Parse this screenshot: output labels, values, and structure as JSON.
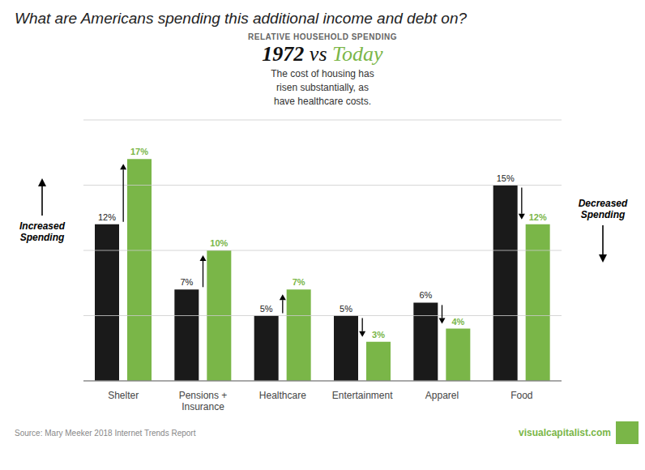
{
  "chart_data": {
    "type": "bar",
    "title": "What are Americans spending this additional income and debt on?",
    "subtitle": "RELATIVE HOUSEHOLD SPENDING",
    "categories": [
      "Shelter",
      "Pensions +\nInsurance",
      "Healthcare",
      "Entertainment",
      "Apparel",
      "Food"
    ],
    "series": [
      {
        "name": "1972",
        "color": "#1a1a1a",
        "values": [
          12,
          7,
          5,
          5,
          6,
          15
        ],
        "value_labels": [
          "12%",
          "7%",
          "5%",
          "5%",
          "6%",
          "15%"
        ]
      },
      {
        "name": "Today",
        "color": "#7ab648",
        "values": [
          17,
          10,
          7,
          3,
          4,
          12
        ],
        "value_labels": [
          "17%",
          "10%",
          "7%",
          "3%",
          "4%",
          "12%"
        ]
      }
    ],
    "ylim": [
      0,
      20
    ],
    "yticks": [
      0,
      5,
      10,
      15,
      20
    ],
    "grid": true,
    "data_labels": true,
    "tick_labels": "x",
    "annotations": [
      "1972 vs Today",
      "The cost of housing has\nrisen substantially, as\nhave healthcare costs.",
      "Increased\nSpending",
      "Decreased\nSpending",
      "Source: Mary Meeker 2018 Internet Trends Report",
      "visualcapitalist.com"
    ]
  }
}
